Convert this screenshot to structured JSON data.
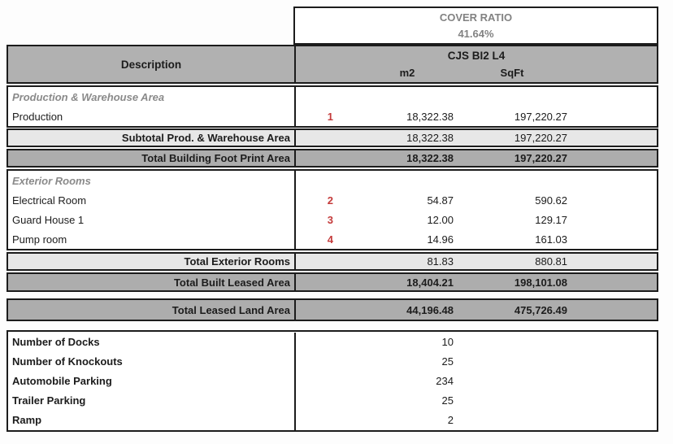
{
  "colors": {
    "ref_number_red": "#c43a3a",
    "header_gray": "#b1b1b1",
    "subtotal_gray": "#e7e7e7",
    "total_gray": "#adadad",
    "muted_text_gray": "#8a8a8a",
    "border_black": "#1c1c1c"
  },
  "cover": {
    "title": "COVER RATIO",
    "value": "41.64%"
  },
  "header": {
    "description": "Description",
    "group": "CJS BI2 L4",
    "unit_m2": "m2",
    "unit_sqft": "SqFt"
  },
  "table": {
    "rows": [
      {
        "type": "section",
        "label": "Production & Warehouse Area"
      },
      {
        "type": "item",
        "label": "Production",
        "ref": "1",
        "m2": "18,322.38",
        "sqft": "197,220.27"
      },
      {
        "type": "subtotal",
        "label": "Subtotal Prod. & Warehouse Area",
        "m2": "18,322.38",
        "sqft": "197,220.27"
      },
      {
        "type": "total",
        "label": "Total Building Foot Print Area",
        "m2": "18,322.38",
        "sqft": "197,220.27"
      },
      {
        "type": "section",
        "label": "Exterior Rooms"
      },
      {
        "type": "item",
        "label": "Electrical Room",
        "ref": "2",
        "m2": "54.87",
        "sqft": "590.62"
      },
      {
        "type": "item",
        "label": "Guard House 1",
        "ref": "3",
        "m2": "12.00",
        "sqft": "129.17"
      },
      {
        "type": "item",
        "label": "Pump room",
        "ref": "4",
        "m2": "14.96",
        "sqft": "161.03"
      },
      {
        "type": "subtotal",
        "label": "Total Exterior Rooms",
        "m2": "81.83",
        "sqft": "880.81"
      },
      {
        "type": "total",
        "label": "Total Built Leased Area",
        "m2": "18,404.21",
        "sqft": "198,101.08"
      },
      {
        "type": "grand",
        "label": "Total Leased Land Area",
        "m2": "44,196.48",
        "sqft": "475,726.49"
      }
    ]
  },
  "facilities": {
    "rows": [
      {
        "label": "Number of Docks",
        "value": "10"
      },
      {
        "label": "Number of Knockouts",
        "value": "25"
      },
      {
        "label": "Automobile Parking",
        "value": "234"
      },
      {
        "label": "Trailer Parking",
        "value": "25"
      },
      {
        "label": "Ramp",
        "value": "2"
      }
    ]
  }
}
